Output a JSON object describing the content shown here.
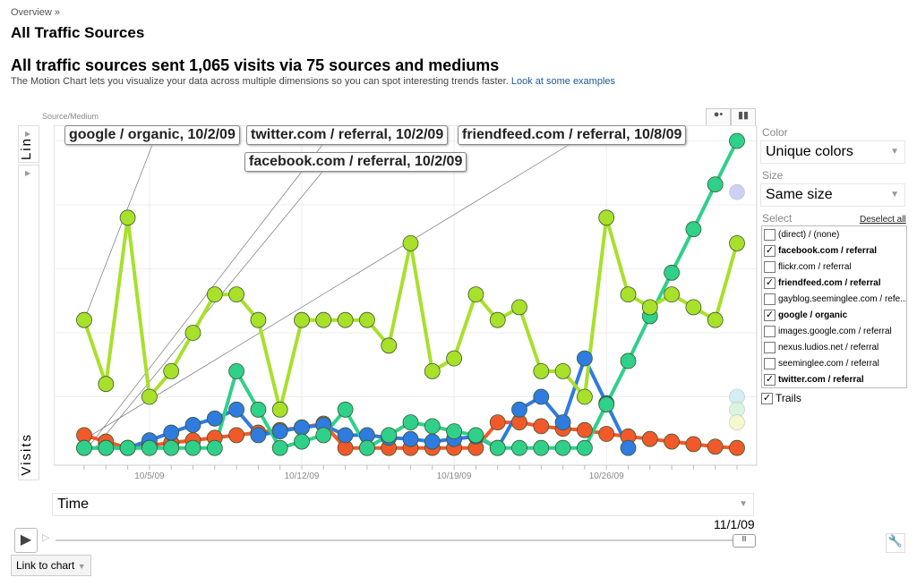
{
  "breadcrumb": "Overview »",
  "page_title": "All Traffic Sources",
  "headline": "All traffic sources sent 1,065 visits via 75 sources and mediums",
  "description": "The Motion Chart lets you visualize your data across multiple dimensions so you can spot interesting trends faster.",
  "examples_link": "Look at some examples",
  "controls": {
    "source_label": "Source/Medium",
    "scale_y": "Lin",
    "y_metric": "Visits",
    "x_metric": "Time",
    "color_label": "Color",
    "color_value": "Unique colors",
    "size_label": "Size",
    "size_value": "Same size",
    "select_label": "Select",
    "deselect_all": "Deselect all",
    "trails_label": "Trails",
    "trails_checked": true,
    "current_date": "11/1/09",
    "link_to_chart": "Link to chart",
    "play_icon": "play-icon",
    "settings_icon": "wrench-icon"
  },
  "select_items": [
    {
      "label": "(direct) / (none)",
      "checked": false
    },
    {
      "label": "facebook.com / referral",
      "checked": true
    },
    {
      "label": "flickr.com / referral",
      "checked": false
    },
    {
      "label": "friendfeed.com / referral",
      "checked": true
    },
    {
      "label": "gayblog.seeminglee.com / refe...",
      "checked": false
    },
    {
      "label": "google / organic",
      "checked": true
    },
    {
      "label": "images.google.com / referral",
      "checked": false
    },
    {
      "label": "nexus.ludios.net / referral",
      "checked": false
    },
    {
      "label": "seeminglee.com / referral",
      "checked": false
    },
    {
      "label": "twitter.com / referral",
      "checked": true
    }
  ],
  "callouts": [
    "google / organic, 10/2/09",
    "twitter.com / referral, 10/2/09",
    "friendfeed.com / referral, 10/8/09",
    "facebook.com / referral, 10/2/09"
  ],
  "chart_data": {
    "type": "line",
    "xlabel": "Time",
    "ylabel": "Visits",
    "x_start": "10/2/09",
    "x_end": "11/1/09",
    "x_ticks": [
      "10/5/09",
      "10/12/09",
      "10/19/09",
      "10/26/09"
    ],
    "y_ticks": [
      5,
      10,
      15,
      20,
      25
    ],
    "ylim": [
      0,
      26
    ],
    "grid": true,
    "series": [
      {
        "name": "google / organic",
        "color": "#a8e02a",
        "values": [
          11,
          6,
          19,
          5,
          7,
          10,
          13,
          13,
          11,
          4,
          11,
          11,
          11,
          11,
          9,
          17,
          7,
          8,
          13,
          11,
          12,
          7,
          7,
          5,
          19,
          13,
          12,
          13,
          12,
          11,
          17
        ]
      },
      {
        "name": "twitter.com / referral",
        "color": "#2fd08a",
        "values": [
          1,
          1,
          1,
          1,
          1,
          1,
          1,
          7,
          4,
          1,
          1.5,
          2,
          4,
          1,
          2,
          3,
          2.7,
          2.3,
          2,
          1,
          1,
          1,
          1,
          1,
          4.4,
          7.8,
          11.3,
          14.7,
          18.1,
          21.6,
          25
        ]
      },
      {
        "name": "facebook.com / referral",
        "color": "#2f7be0",
        "values": [
          1,
          1,
          1,
          1.6,
          2.2,
          2.8,
          3.3,
          4,
          2,
          2.3,
          2.6,
          2.8,
          2,
          2,
          1.8,
          1.7,
          1.5,
          1.7,
          1.9,
          1,
          4,
          5,
          3,
          8,
          4.5,
          1
        ]
      },
      {
        "name": "friendfeed.com / referral",
        "color": "#f2592a",
        "values": [
          2,
          1.5,
          1,
          1.2,
          1.4,
          1.6,
          1.8,
          2,
          2.2,
          2.4,
          2.6,
          2.9,
          1,
          1,
          1,
          1,
          1,
          1,
          1,
          3,
          3,
          2.7,
          2.5,
          2.4,
          2.1,
          1.9,
          1.7,
          1.5,
          1.3,
          1.1,
          1
        ]
      }
    ],
    "unselected_bubbles": [
      {
        "value": 21,
        "color": "#c8cbf5"
      },
      {
        "value": 5,
        "color": "#cdeef5"
      },
      {
        "value": 4,
        "color": "#d5f5dc"
      },
      {
        "value": 3,
        "color": "#f5f8c8"
      }
    ]
  }
}
